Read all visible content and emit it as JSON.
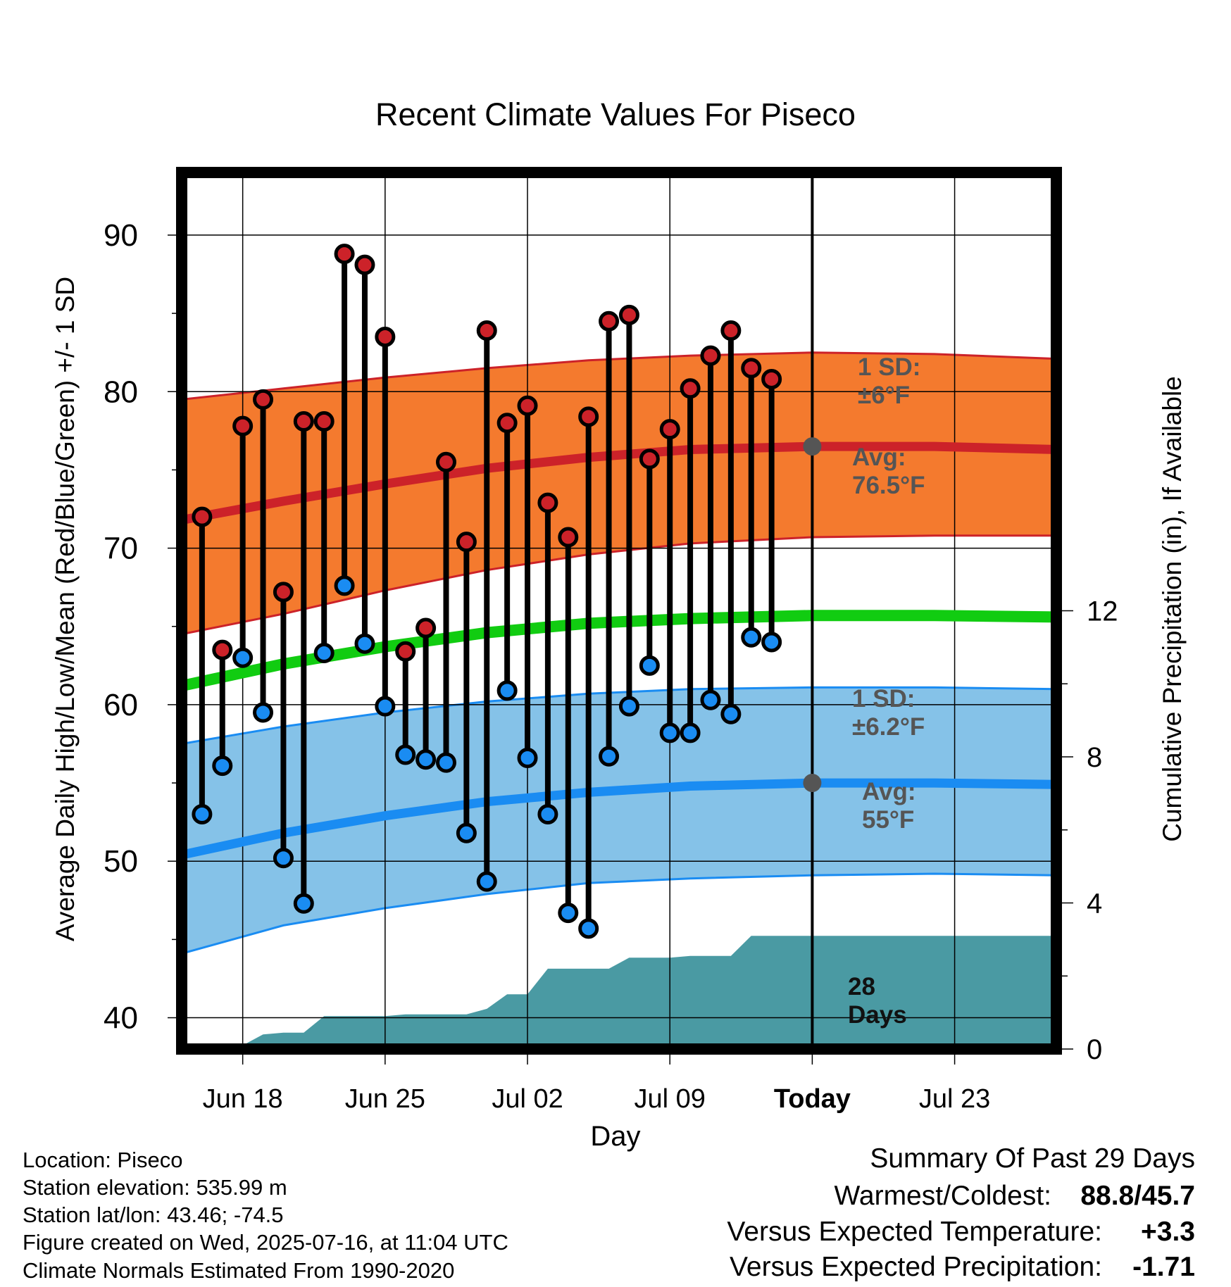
{
  "chart_data": {
    "type": "line",
    "title": "Recent Climate Values For Piseco",
    "xlabel": "Day",
    "ylabel": "Average Daily High/Low/Mean (Red/Blue/Green) +/- 1 SD",
    "y2label": "Cumulative Precipitation (in), If Available",
    "x_range_days_from_jun15": [
      0,
      43
    ],
    "ylim": [
      38,
      94
    ],
    "y2lim": [
      0,
      24
    ],
    "yticks": [
      40,
      50,
      60,
      70,
      80,
      90
    ],
    "y2ticks": [
      0,
      4,
      8,
      12
    ],
    "xticks": [
      {
        "day": 3,
        "label": "Jun 18"
      },
      {
        "day": 10,
        "label": "Jun 25"
      },
      {
        "day": 17,
        "label": "Jul 02"
      },
      {
        "day": 24,
        "label": "Jul 09"
      },
      {
        "day": 31,
        "label": "Today"
      },
      {
        "day": 38,
        "label": "Jul 23"
      }
    ],
    "grid": true,
    "today_day": 31,
    "daily": {
      "days": [
        1,
        2,
        3,
        4,
        5,
        6,
        7,
        8,
        9,
        10,
        11,
        12,
        13,
        14,
        15,
        16,
        17,
        18,
        19,
        20,
        21,
        22,
        23,
        24,
        25,
        26,
        27,
        28,
        29
      ],
      "highs": [
        72.0,
        63.5,
        77.8,
        79.5,
        67.2,
        78.1,
        78.1,
        88.8,
        88.1,
        83.5,
        63.4,
        64.9,
        75.5,
        70.4,
        83.9,
        78.0,
        79.1,
        72.9,
        70.7,
        78.4,
        84.5,
        84.9,
        75.7,
        77.6,
        80.2,
        82.3,
        83.9,
        81.5,
        80.8
      ],
      "lows": [
        53.0,
        56.1,
        63.0,
        59.5,
        50.2,
        47.3,
        63.3,
        67.6,
        63.9,
        59.9,
        56.8,
        56.5,
        56.3,
        51.8,
        48.7,
        60.9,
        56.6,
        53.0,
        46.7,
        45.7,
        56.7,
        59.9,
        62.5,
        58.2,
        58.2,
        60.3,
        59.4,
        64.3,
        64.0
      ]
    },
    "normals": {
      "days": [
        0,
        5,
        10,
        15,
        20,
        25,
        31,
        37,
        43
      ],
      "avg_high": [
        71.8,
        73.0,
        74.1,
        75.1,
        75.8,
        76.3,
        76.5,
        76.5,
        76.3
      ],
      "high_upper": [
        79.5,
        80.2,
        80.9,
        81.5,
        82.0,
        82.3,
        82.5,
        82.4,
        82.1
      ],
      "high_lower": [
        64.5,
        65.8,
        67.3,
        68.6,
        69.6,
        70.3,
        70.7,
        70.8,
        70.8
      ],
      "avg_mean": [
        61.2,
        62.6,
        63.7,
        64.6,
        65.2,
        65.5,
        65.7,
        65.7,
        65.6
      ],
      "avg_low": [
        50.4,
        51.8,
        52.9,
        53.8,
        54.4,
        54.8,
        55.0,
        55.0,
        54.9
      ],
      "low_upper": [
        57.5,
        58.6,
        59.5,
        60.2,
        60.7,
        61.0,
        61.1,
        61.1,
        61.0
      ],
      "low_lower": [
        44.1,
        45.9,
        47.0,
        47.9,
        48.6,
        48.9,
        49.1,
        49.2,
        49.1
      ]
    },
    "precip_cumulative": {
      "days": [
        0,
        2,
        3,
        4,
        5,
        6,
        7,
        8,
        9,
        10,
        11,
        12,
        13,
        14,
        15,
        16,
        17,
        18,
        19,
        20,
        21,
        22,
        23,
        24,
        25,
        26,
        27,
        28,
        29,
        30,
        31,
        43
      ],
      "values": [
        0.0,
        0.0,
        0.1,
        0.4,
        0.45,
        0.45,
        0.9,
        0.9,
        0.9,
        0.9,
        0.95,
        0.95,
        0.95,
        0.95,
        1.1,
        1.5,
        1.5,
        2.2,
        2.2,
        2.2,
        2.2,
        2.5,
        2.5,
        2.5,
        2.55,
        2.55,
        2.55,
        3.1,
        3.1,
        3.1,
        3.1,
        3.1
      ]
    },
    "annotations": {
      "high_sd": [
        "1 SD:",
        "±6°F"
      ],
      "high_avg": [
        "Avg:",
        "76.5°F"
      ],
      "low_sd": [
        "1 SD:",
        "±6.2°F"
      ],
      "low_avg": [
        "Avg:",
        "55°F"
      ],
      "days": [
        "28",
        "Days"
      ]
    },
    "colors": {
      "high": "#cc2229",
      "high_band": "#f47a2e",
      "low": "#1a8cf2",
      "low_band": "#85c2e8",
      "mean": "#11cc11",
      "precip": "#4a9aa3",
      "annotation": "#555555"
    }
  },
  "footer": {
    "location": "Location: Piseco",
    "elevation": "Station elevation: 535.99 m",
    "latlon": "Station lat/lon: 43.46; -74.5",
    "created": "Figure created on Wed, 2025-07-16, at 11:04 UTC",
    "normals": "Climate Normals Estimated From 1990-2020"
  },
  "summary": {
    "title": "Summary Of Past 29 Days",
    "warmest_label": "Warmest/Coldest:",
    "warmest_value": "88.8",
    "coldest_value": "45.7",
    "temp_label": "Versus Expected Temperature:",
    "temp_value": "+3.3",
    "temp_color": "#cc2229",
    "precip_label": "Versus Expected Precipitation:",
    "precip_value": "-1.71",
    "precip_color": "#a0522d"
  }
}
